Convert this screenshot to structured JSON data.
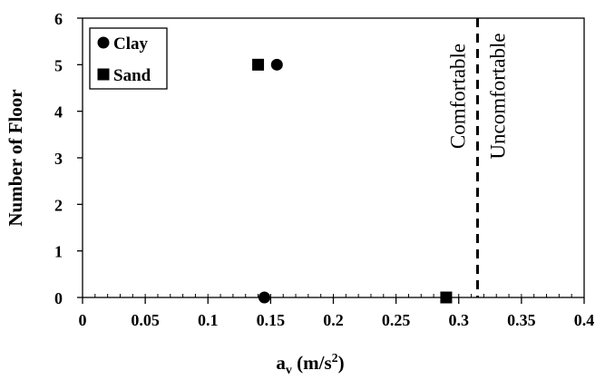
{
  "chart_data": {
    "type": "scatter",
    "xlabel": {
      "main": "a",
      "sub": "v",
      "unit_open": " (m/s",
      "sup": "2",
      "unit_close": ")"
    },
    "ylabel": "Number of Floor",
    "xlim": [
      0,
      0.4
    ],
    "ylim": [
      0,
      6
    ],
    "xticks": [
      0,
      0.05,
      0.1,
      0.15,
      0.2,
      0.25,
      0.3,
      0.35,
      0.4
    ],
    "xtick_labels": [
      "0",
      "0.05",
      "0.1",
      "0.15",
      "0.2",
      "0.25",
      "0.3",
      "0.35",
      "0.4"
    ],
    "yticks": [
      0,
      1,
      2,
      3,
      4,
      5,
      6
    ],
    "ytick_labels": [
      "0",
      "1",
      "2",
      "3",
      "4",
      "5",
      "6"
    ],
    "x_minor_step": 0.01,
    "grid": false,
    "legend_position": "top-left",
    "series": [
      {
        "name": "Clay",
        "marker": "circle",
        "color": "#000000",
        "points": [
          {
            "x": 0.145,
            "y": 0
          },
          {
            "x": 0.155,
            "y": 5
          }
        ]
      },
      {
        "name": "Sand",
        "marker": "square",
        "color": "#000000",
        "points": [
          {
            "x": 0.29,
            "y": 0
          },
          {
            "x": 0.14,
            "y": 5
          }
        ]
      }
    ],
    "threshold": {
      "x": 0.315,
      "style": "dashed",
      "color": "#000000"
    },
    "annotations": [
      {
        "text": "Comfortable",
        "side": "left",
        "color": "#00b050"
      },
      {
        "text": "Uncomfortable",
        "side": "right",
        "color": "#ff0000"
      }
    ]
  }
}
